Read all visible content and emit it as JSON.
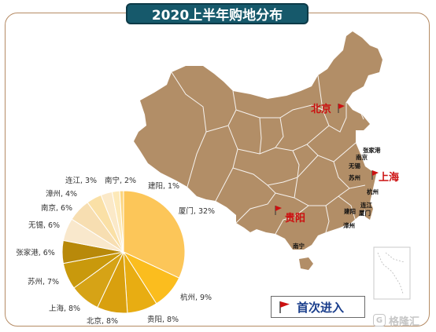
{
  "title": "2020上半年购地分布",
  "legend": {
    "label": "首次进入",
    "flag_color": "#cc1010"
  },
  "watermark": {
    "text": "格隆汇",
    "logo": "G"
  },
  "colors": {
    "map_fill": "#b28e67",
    "map_border": "#ffffff",
    "frame": "#b58b64",
    "title_bg": "#16596b",
    "flag": "#cc1010"
  },
  "map": {
    "cities_small": [
      {
        "id": "zhangjiagang",
        "label": "张家港"
      },
      {
        "id": "nanjing",
        "label": "南京"
      },
      {
        "id": "wuxi",
        "label": "无锡"
      },
      {
        "id": "suzhou",
        "label": "苏州"
      },
      {
        "id": "hangzhou",
        "label": "杭州"
      },
      {
        "id": "lianjiang",
        "label": "连江"
      },
      {
        "id": "jianyang",
        "label": "建阳"
      },
      {
        "id": "xiamen",
        "label": "厦门"
      },
      {
        "id": "zhangzhou",
        "label": "漳州"
      },
      {
        "id": "nanning",
        "label": "南宁"
      }
    ],
    "cities_first_entry": [
      {
        "id": "beijing",
        "label": "北京"
      },
      {
        "id": "shanghai",
        "label": "上海"
      },
      {
        "id": "guiyang",
        "label": "贵阳"
      }
    ]
  },
  "chart_data": {
    "type": "pie",
    "unit": "%",
    "slices": [
      {
        "name": "厦门",
        "value": 32,
        "label": "厦门, 32%",
        "color": "#fcc659"
      },
      {
        "name": "杭州",
        "value": 9,
        "label": "杭州, 9%",
        "color": "#fbbd1e"
      },
      {
        "name": "贵阳",
        "value": 8,
        "label": "贵阳, 8%",
        "color": "#e8ad12"
      },
      {
        "name": "北京",
        "value": 8,
        "label": "北京, 8%",
        "color": "#d9a00e"
      },
      {
        "name": "上海",
        "value": 8,
        "label": "上海, 8%",
        "color": "#d6a316"
      },
      {
        "name": "苏州",
        "value": 7,
        "label": "苏州, 7%",
        "color": "#c9990c"
      },
      {
        "name": "张家港",
        "value": 6,
        "label": "张家港, 6%",
        "color": "#b8890a"
      },
      {
        "name": "无锡",
        "value": 6,
        "label": "无锡, 6%",
        "color": "#f9e8cc"
      },
      {
        "name": "南京",
        "value": 6,
        "label": "南京, 6%",
        "color": "#f7deb1"
      },
      {
        "name": "漳州",
        "value": 4,
        "label": "漳州, 4%",
        "color": "#fae0a6"
      },
      {
        "name": "连江",
        "value": 3,
        "label": "连江, 3%",
        "color": "#fbe9c8"
      },
      {
        "name": "南宁",
        "value": 2,
        "label": "南宁, 2%",
        "color": "#fde9b8"
      },
      {
        "name": "建阳",
        "value": 1,
        "label": "建阳, 1%",
        "color": "#fcd57e"
      }
    ]
  }
}
